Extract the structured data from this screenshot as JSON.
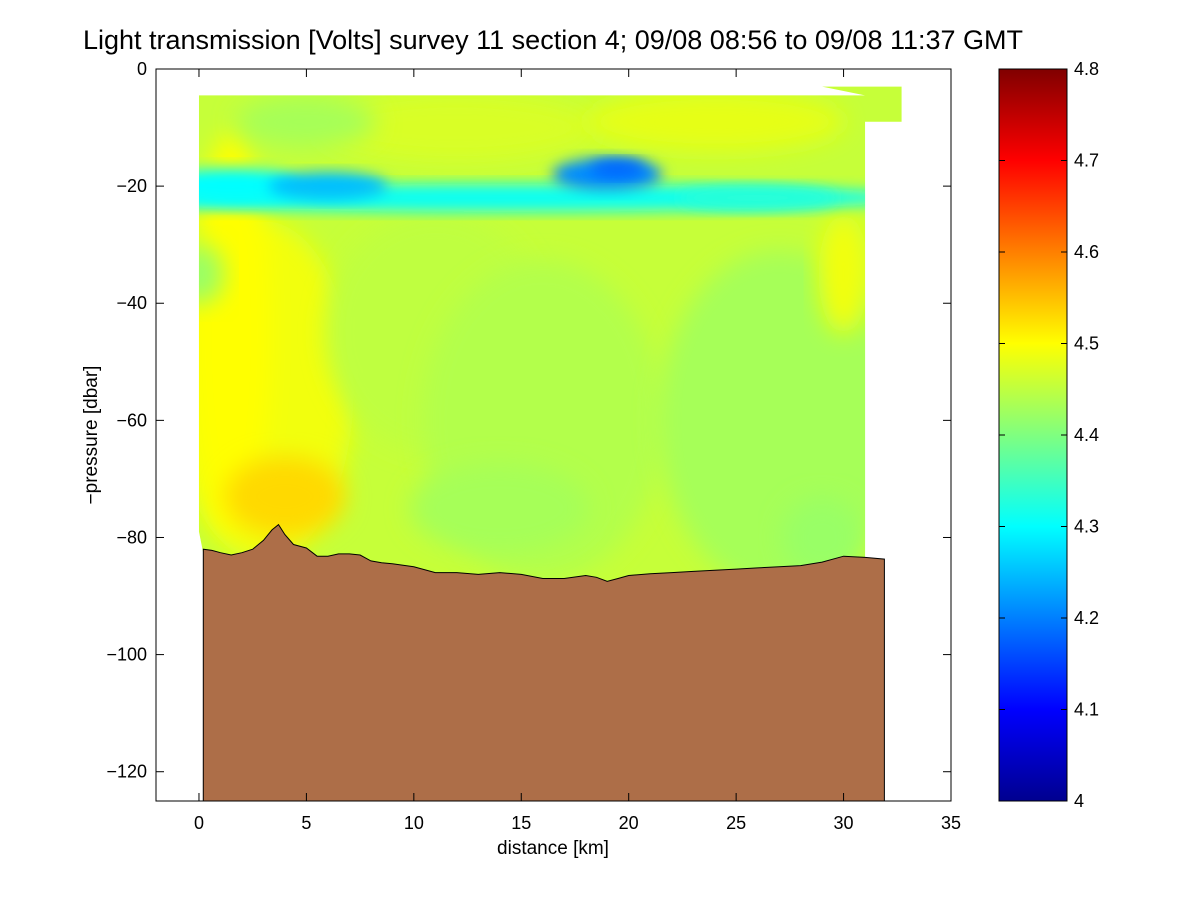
{
  "chart_data": {
    "type": "heatmap",
    "title": "Light transmission [Volts] survey 11 section 4; 09/08 08:56 to 09/08 11:37 GMT",
    "xlabel": "distance [km]",
    "ylabel": "−pressure [dbar]",
    "xlim": [
      -2,
      35
    ],
    "ylim": [
      -125,
      0
    ],
    "xticks": [
      0,
      5,
      10,
      15,
      20,
      25,
      30,
      35
    ],
    "yticks": [
      0,
      -20,
      -40,
      -60,
      -80,
      -100,
      -120
    ],
    "xtick_labels": [
      "0",
      "5",
      "10",
      "15",
      "20",
      "25",
      "30",
      "35"
    ],
    "ytick_labels": [
      "0",
      "−20",
      "−40",
      "−60",
      "−80",
      "−100",
      "−120"
    ],
    "colorbar": {
      "range": [
        4.0,
        4.8
      ],
      "ticks": [
        4.0,
        4.1,
        4.2,
        4.3,
        4.4,
        4.5,
        4.6,
        4.7,
        4.8
      ],
      "tick_labels": [
        "4",
        "4.1",
        "4.2",
        "4.3",
        "4.4",
        "4.5",
        "4.6",
        "4.7",
        "4.8"
      ],
      "colormap": "jet"
    },
    "data_region": {
      "x_range": [
        0,
        31
      ],
      "surface_pressure": -4.5,
      "surface_extension": [
        {
          "x": 29,
          "to_x": 32.7,
          "y": -3,
          "to_y": -9
        }
      ],
      "bottom_left_y": -79
    },
    "features": [
      {
        "name": "low transmission band",
        "center_x": 19,
        "center_y": -18,
        "value": 4.2
      },
      {
        "name": "low transmission band west",
        "center_x": 6,
        "center_y": -20,
        "value": 4.25
      },
      {
        "name": "high transmission patch",
        "center_x": 4,
        "center_y": -73,
        "value": 4.53
      }
    ],
    "bathymetry": {
      "fill_color": "#ad6e48",
      "x": [
        0.2,
        0.6,
        1.0,
        1.5,
        2.0,
        2.5,
        3.0,
        3.4,
        3.7,
        4.0,
        4.4,
        5.0,
        5.5,
        6.0,
        6.5,
        7.0,
        7.5,
        8.0,
        8.5,
        9.0,
        10.0,
        11.0,
        12.0,
        13.0,
        14.0,
        15.0,
        16.0,
        17.0,
        18.0,
        18.5,
        19.0,
        19.5,
        20.0,
        21.0,
        22.0,
        23.0,
        24.0,
        25.0,
        26.0,
        27.0,
        28.0,
        29.0,
        30.0,
        31.0,
        31.9
      ],
      "y": [
        -82.0,
        -82.2,
        -82.6,
        -83.0,
        -82.6,
        -82.0,
        -80.5,
        -78.7,
        -77.8,
        -79.5,
        -81.2,
        -81.8,
        -83.2,
        -83.2,
        -82.8,
        -82.8,
        -83.0,
        -84.0,
        -84.3,
        -84.5,
        -85.0,
        -86.0,
        -86.0,
        -86.3,
        -86.0,
        -86.3,
        -87.0,
        -87.0,
        -86.5,
        -86.8,
        -87.5,
        -87.0,
        -86.5,
        -86.2,
        -86.0,
        -85.8,
        -85.6,
        -85.4,
        -85.2,
        -85.0,
        -84.8,
        -84.2,
        -83.2,
        -83.4,
        -83.7
      ]
    }
  }
}
